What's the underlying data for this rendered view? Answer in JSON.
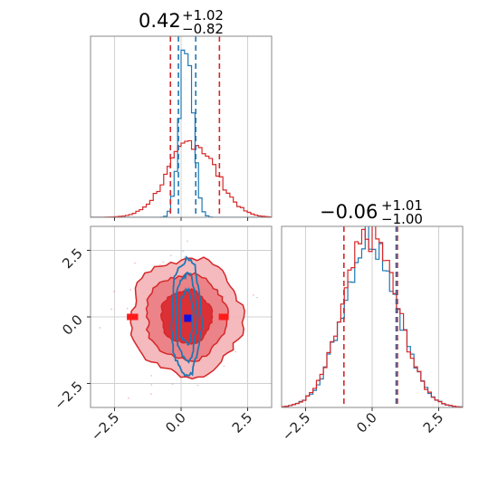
{
  "chart_data": {
    "type": "corner",
    "panels": [
      {
        "panel": "hist-param1",
        "type": "histogram",
        "title": {
          "median": "0.42",
          "upper": "+1.02",
          "lower": "−0.82"
        },
        "xlim": [
          -3.4,
          3.4
        ],
        "grid": true,
        "series": [
          {
            "color": "#1f77b4",
            "mean": 0.2,
            "sd": 0.25,
            "peak": 0.97,
            "quantiles": [
              -0.1,
              0.55
            ],
            "quantile_style": "dashed"
          },
          {
            "color": "#d62728",
            "mean": 0.42,
            "sd": 0.9,
            "peak": 0.42,
            "quantiles": [
              -0.4,
              1.44
            ],
            "quantile_style": "dashed"
          }
        ]
      },
      {
        "panel": "hist-param2",
        "type": "histogram",
        "title": {
          "median": "−0.06",
          "upper": "+1.01",
          "lower": "−1.00"
        },
        "xlim": [
          -3.4,
          3.4
        ],
        "x_ticks": [
          "−2.5",
          "0.0",
          "2.5"
        ],
        "x_tick_values": [
          -2.5,
          0.0,
          2.5
        ],
        "grid": true,
        "series": [
          {
            "color": "#1f77b4",
            "mean": -0.06,
            "sd": 1.0,
            "peak": 0.95,
            "quantiles": [
              0.9
            ],
            "quantile_style": "dashed"
          },
          {
            "color": "#d62728",
            "mean": -0.06,
            "sd": 1.0,
            "peak": 0.95,
            "quantiles": [
              -1.06,
              0.95
            ],
            "quantile_style": "dashed"
          }
        ]
      },
      {
        "panel": "contour-2d",
        "type": "contour",
        "xlim": [
          -3.4,
          3.4
        ],
        "ylim": [
          -3.4,
          3.4
        ],
        "x_ticks": [
          "−2.5",
          "0.0",
          "2.5"
        ],
        "x_tick_values": [
          -2.5,
          0.0,
          2.5
        ],
        "y_ticks": [
          "−2.5",
          "0.0",
          "2.5"
        ],
        "y_tick_values": [
          -2.5,
          0.0,
          2.5
        ],
        "grid": true,
        "series": [
          {
            "color": "#d62728",
            "center": [
              0.2,
              0.0
            ],
            "sd": [
              0.95,
              1.0
            ],
            "levels": 3,
            "filled": true,
            "marker_points": [
              [
                -1.9,
                0.0
              ],
              [
                -1.75,
                0.0
              ],
              [
                1.55,
                0.0
              ],
              [
                1.65,
                0.0
              ]
            ]
          },
          {
            "color": "#1f77b4",
            "center": [
              0.2,
              0.0
            ],
            "sd": [
              0.25,
              1.0
            ],
            "levels": 3,
            "filled": false
          }
        ],
        "markers": [
          {
            "x": 0.25,
            "y": -0.05,
            "color": "#1010e0"
          }
        ]
      }
    ]
  }
}
